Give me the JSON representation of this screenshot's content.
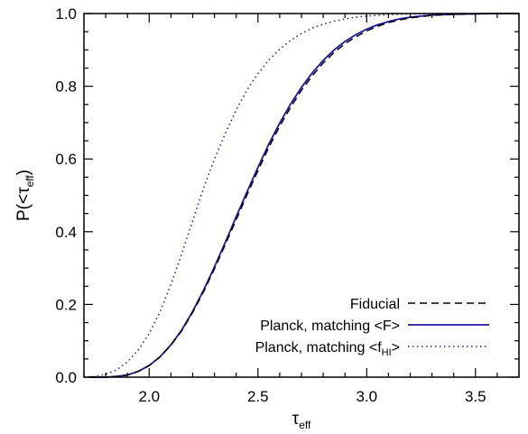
{
  "chart_data": {
    "type": "line",
    "title": "",
    "xlabel": {
      "main": "τ",
      "sub": "eff"
    },
    "ylabel": {
      "pre": "P(<τ",
      "sub": "eff",
      "post": ")"
    },
    "xlim": [
      1.7,
      3.7
    ],
    "ylim": [
      0.0,
      1.0
    ],
    "xticks": [
      2.0,
      2.5,
      3.0,
      3.5
    ],
    "yticks": [
      0.0,
      0.2,
      0.4,
      0.6,
      0.8,
      1.0
    ],
    "xtick_labels": [
      "2.0",
      "2.5",
      "3.0",
      "3.5"
    ],
    "ytick_labels": [
      "0.0",
      "0.2",
      "0.4",
      "0.6",
      "0.8",
      "1.0"
    ],
    "grid": false,
    "legend_position": "bottom-right",
    "series": [
      {
        "name": "Fiducial",
        "color": "#000000",
        "style": "dashed",
        "x": [
          1.72,
          1.8,
          1.85,
          1.9,
          1.95,
          2.0,
          2.05,
          2.1,
          2.15,
          2.2,
          2.25,
          2.3,
          2.35,
          2.4,
          2.45,
          2.5,
          2.55,
          2.6,
          2.65,
          2.7,
          2.75,
          2.8,
          2.85,
          2.9,
          2.95,
          3.0,
          3.05,
          3.1,
          3.15,
          3.2,
          3.3,
          3.4,
          3.5,
          3.6,
          3.7
        ],
        "y": [
          0.0,
          0.0,
          0.002,
          0.006,
          0.016,
          0.032,
          0.056,
          0.088,
          0.128,
          0.178,
          0.235,
          0.298,
          0.365,
          0.433,
          0.502,
          0.568,
          0.632,
          0.69,
          0.742,
          0.789,
          0.829,
          0.864,
          0.893,
          0.917,
          0.936,
          0.952,
          0.965,
          0.975,
          0.982,
          0.988,
          0.995,
          0.998,
          0.999,
          1.0,
          1.0
        ]
      },
      {
        "name": "Planck, matching <F>",
        "color": "#1a1a9e",
        "style": "solid",
        "x": [
          1.72,
          1.8,
          1.85,
          1.9,
          1.95,
          2.0,
          2.05,
          2.1,
          2.15,
          2.2,
          2.25,
          2.3,
          2.35,
          2.4,
          2.45,
          2.5,
          2.55,
          2.6,
          2.65,
          2.7,
          2.75,
          2.8,
          2.85,
          2.9,
          2.95,
          3.0,
          3.05,
          3.1,
          3.15,
          3.2,
          3.3,
          3.4,
          3.5,
          3.6,
          3.7
        ],
        "y": [
          0.0,
          0.0,
          0.002,
          0.006,
          0.016,
          0.032,
          0.056,
          0.089,
          0.13,
          0.181,
          0.239,
          0.303,
          0.371,
          0.441,
          0.51,
          0.577,
          0.641,
          0.699,
          0.751,
          0.797,
          0.837,
          0.871,
          0.9,
          0.923,
          0.942,
          0.957,
          0.969,
          0.978,
          0.985,
          0.99,
          0.996,
          0.998,
          0.999,
          1.0,
          1.0
        ]
      },
      {
        "name": "Planck, matching <f_HI>",
        "color": "#1a1a9e",
        "style": "dotted",
        "x": [
          1.72,
          1.75,
          1.8,
          1.85,
          1.9,
          1.95,
          2.0,
          2.05,
          2.1,
          2.15,
          2.2,
          2.25,
          2.3,
          2.35,
          2.4,
          2.45,
          2.5,
          2.55,
          2.6,
          2.65,
          2.7,
          2.75,
          2.8,
          2.85,
          2.9,
          2.95,
          3.0,
          3.1,
          3.2,
          3.3,
          3.4,
          3.5,
          3.6,
          3.7
        ],
        "y": [
          0.0,
          0.002,
          0.008,
          0.02,
          0.042,
          0.075,
          0.12,
          0.18,
          0.255,
          0.34,
          0.43,
          0.52,
          0.6,
          0.67,
          0.735,
          0.79,
          0.835,
          0.872,
          0.902,
          0.926,
          0.945,
          0.96,
          0.971,
          0.979,
          0.985,
          0.99,
          0.993,
          0.997,
          0.999,
          1.0,
          1.0,
          1.0,
          1.0,
          1.0
        ]
      }
    ],
    "legend": [
      {
        "label": "Fiducial",
        "series_index": 0
      },
      {
        "label_pre": "Planck, matching <F>",
        "series_index": 1
      },
      {
        "label_pre": "Planck, matching <f",
        "label_sub": "HI",
        "label_post": ">",
        "series_index": 2
      }
    ]
  }
}
